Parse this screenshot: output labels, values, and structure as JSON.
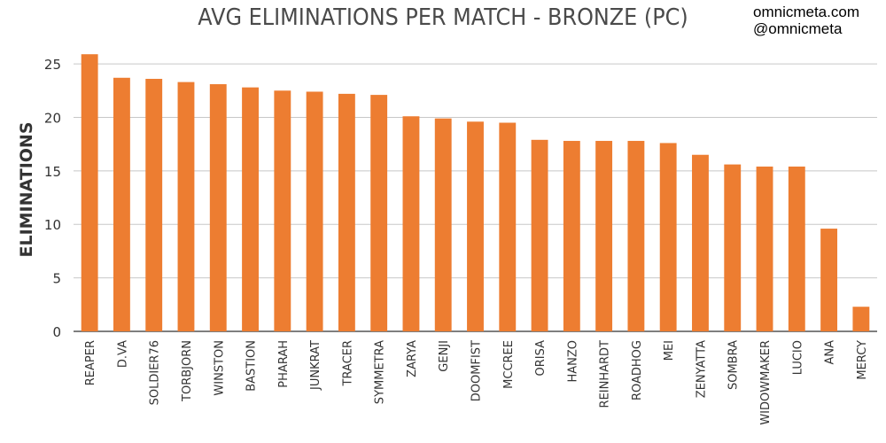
{
  "watermark": {
    "site": "omnicmeta.com",
    "handle": "@omnicmeta"
  },
  "colors": {
    "bar": "#ED7D31",
    "grid": "#c8c8c8",
    "axis": "#333333"
  },
  "chart_data": {
    "type": "bar",
    "title": "AVG ELIMINATIONS PER MATCH - BRONZE (PC)",
    "xlabel": "",
    "ylabel": "ELIMINATIONS",
    "ylim": [
      0,
      26
    ],
    "yticks": [
      0,
      5,
      10,
      15,
      20,
      25
    ],
    "grid": true,
    "categories": [
      "REAPER",
      "D.VA",
      "SOLDIER76",
      "TORBJORN",
      "WINSTON",
      "BASTION",
      "PHARAH",
      "JUNKRAT",
      "TRACER",
      "SYMMETRA",
      "ZARYA",
      "GENJI",
      "DOOMFIST",
      "MCCREE",
      "ORISA",
      "HANZO",
      "REINHARDT",
      "ROADHOG",
      "MEI",
      "ZENYATTA",
      "SOMBRA",
      "WIDOWMAKER",
      "LUCIO",
      "ANA",
      "MERCY"
    ],
    "values": [
      25.9,
      23.7,
      23.6,
      23.3,
      23.1,
      22.8,
      22.5,
      22.4,
      22.2,
      22.1,
      20.1,
      19.9,
      19.6,
      19.5,
      17.9,
      17.8,
      17.8,
      17.8,
      17.6,
      16.5,
      15.6,
      15.4,
      15.4,
      9.6,
      2.3
    ]
  }
}
